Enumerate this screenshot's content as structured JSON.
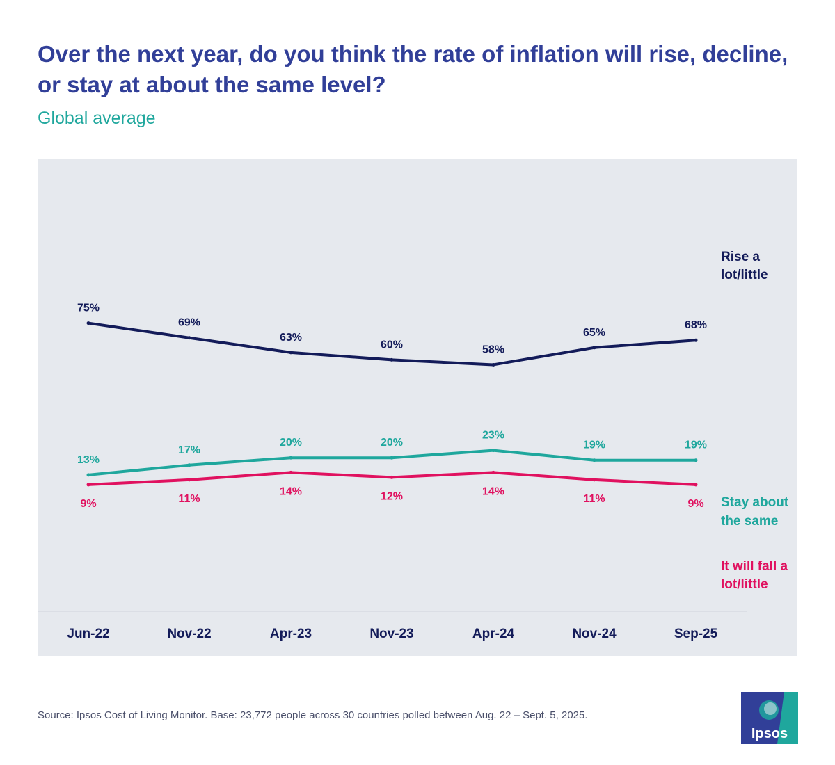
{
  "title": "Over the next year, do you think the rate of inflation will rise, decline, or stay at about the same level?",
  "subtitle": "Global average",
  "source": "Source: Ipsos Cost of Living Monitor. Base: 23,772 people across 30 countries polled between Aug. 22 – Sept. 5, 2025.",
  "logo": {
    "text": "Ipsos",
    "bg_color": "#313f98",
    "accent_color": "#1fa79d"
  },
  "chart_data": {
    "type": "line",
    "title": "Over the next year, do you think the rate of inflation will rise, decline, or stay at about the same level?",
    "subtitle": "Global average",
    "categories": [
      "Jun-22",
      "Nov-22",
      "Apr-23",
      "Nov-23",
      "Apr-24",
      "Nov-24",
      "Sep-25"
    ],
    "series": [
      {
        "name": "Rise a lot/little",
        "name_lines": [
          "Rise a",
          "lot/little"
        ],
        "color": "#131b59",
        "values": [
          75,
          69,
          63,
          60,
          58,
          65,
          68
        ],
        "labels": [
          "75%",
          "69%",
          "63%",
          "60%",
          "58%",
          "65%",
          "68%"
        ]
      },
      {
        "name": "Stay about the same",
        "name_lines": [
          "Stay about",
          "the same"
        ],
        "color": "#1fa79d",
        "values": [
          13,
          17,
          20,
          20,
          23,
          19,
          19
        ],
        "labels": [
          "13%",
          "17%",
          "20%",
          "20%",
          "23%",
          "19%",
          "19%"
        ]
      },
      {
        "name": "It will fall a lot/little",
        "name_lines": [
          "It will fall a",
          "lot/little"
        ],
        "color": "#e0115f",
        "values": [
          9,
          11,
          14,
          12,
          14,
          11,
          9
        ],
        "labels": [
          "9%",
          "11%",
          "14%",
          "12%",
          "14%",
          "11%",
          "9%"
        ]
      }
    ],
    "legend": "inline-right",
    "grid": false
  }
}
